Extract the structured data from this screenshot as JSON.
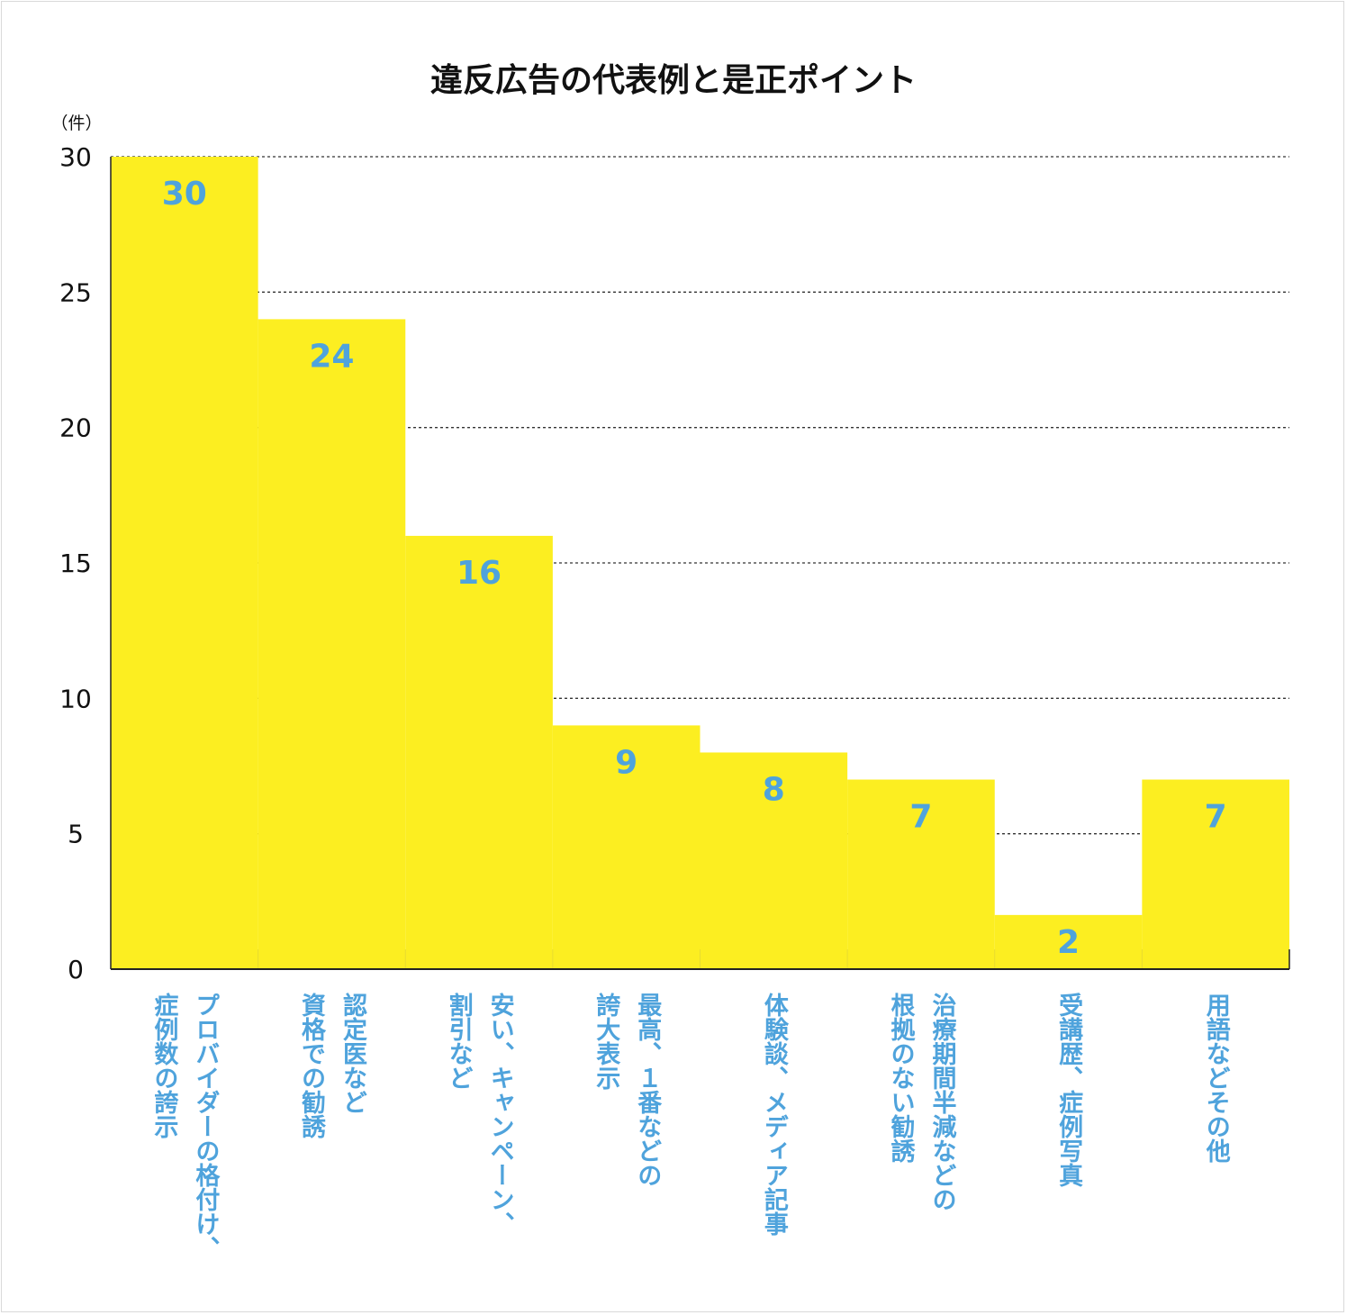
{
  "chart_data": {
    "type": "bar",
    "title": "違反広告の代表例と是正ポイント",
    "ylabel": "（件）",
    "xlabel": "",
    "ylim": [
      0,
      30
    ],
    "yticks": [
      0,
      5,
      10,
      15,
      20,
      25,
      30
    ],
    "grid": true,
    "categories": [
      [
        "プロバイダーの格付け、",
        "症例数の誇示"
      ],
      [
        "認定医など",
        "資格での勧誘"
      ],
      [
        "安い、キャンペーン、",
        "割引など"
      ],
      [
        "最高、１番などの",
        "誇大表示"
      ],
      [
        "体験談、メディア記事"
      ],
      [
        "治療期間半減などの",
        "根拠のない勧誘"
      ],
      [
        "受講歴、症例写真"
      ],
      [
        "用語などその他"
      ]
    ],
    "values": [
      30,
      24,
      16,
      9,
      8,
      7,
      2,
      7
    ],
    "colors": {
      "bar": "#fcee21",
      "label": "#4fa3dc",
      "text": "#111111"
    }
  }
}
